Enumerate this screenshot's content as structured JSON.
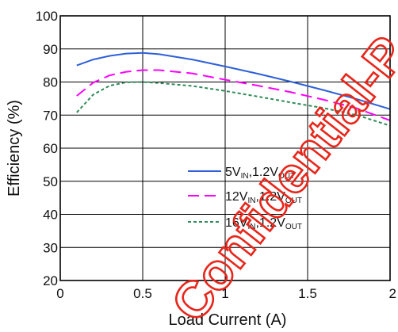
{
  "chart_data": {
    "type": "line",
    "xlabel": "Load Current (A)",
    "ylabel": "Efficiency (%)",
    "xlim": [
      0,
      2
    ],
    "ylim": [
      20,
      100
    ],
    "x_ticks": [
      {
        "value": 0,
        "label": "0"
      },
      {
        "value": 0.5,
        "label": "0.5"
      },
      {
        "value": 1,
        "label": "1"
      },
      {
        "value": 1.5,
        "label": "1.5"
      },
      {
        "value": 2,
        "label": "2"
      }
    ],
    "y_ticks": [
      {
        "value": 20,
        "label": "20"
      },
      {
        "value": 30,
        "label": "30"
      },
      {
        "value": 40,
        "label": "40"
      },
      {
        "value": 50,
        "label": "50"
      },
      {
        "value": 60,
        "label": "60"
      },
      {
        "value": 70,
        "label": "70"
      },
      {
        "value": 80,
        "label": "80"
      },
      {
        "value": 90,
        "label": "90"
      },
      {
        "value": 100,
        "label": "100"
      }
    ],
    "grid": true,
    "legend_position": "lower-right",
    "series": [
      {
        "name": "5VIN,1.2VOUT",
        "legend": {
          "a": "5V",
          "a_sub": "IN",
          "b": ",1.2V",
          "b_sub": "OUT"
        },
        "color": "#2e5fd8",
        "dash": "solid",
        "x": [
          0.1,
          0.2,
          0.3,
          0.4,
          0.5,
          0.6,
          0.8,
          1.0,
          1.2,
          1.4,
          1.6,
          1.8,
          2.0
        ],
        "y": [
          85.0,
          86.8,
          87.9,
          88.6,
          88.8,
          88.4,
          86.8,
          84.7,
          82.5,
          80.1,
          77.5,
          74.8,
          71.8
        ]
      },
      {
        "name": "12VIN,1.2VOUT",
        "legend": {
          "a": "12V",
          "a_sub": "IN",
          "b": ",1.2V",
          "b_sub": "OUT"
        },
        "color": "#ff00ff",
        "dash": "dashed",
        "x": [
          0.1,
          0.2,
          0.3,
          0.4,
          0.5,
          0.6,
          0.8,
          1.0,
          1.2,
          1.4,
          1.6,
          1.8,
          2.0
        ],
        "y": [
          75.8,
          79.8,
          82.0,
          83.1,
          83.6,
          83.6,
          82.6,
          80.7,
          78.9,
          76.9,
          74.6,
          72.0,
          68.4
        ]
      },
      {
        "name": "16VIN,1.2VOUT",
        "legend": {
          "a": "16V",
          "a_sub": "IN",
          "b": ",1.2V",
          "b_sub": "OUT"
        },
        "color": "#2e8b57",
        "dash": "dotted",
        "x": [
          0.1,
          0.2,
          0.3,
          0.4,
          0.5,
          0.6,
          0.8,
          1.0,
          1.2,
          1.4,
          1.6,
          1.8,
          2.0
        ],
        "y": [
          70.8,
          76.2,
          78.9,
          79.9,
          80.0,
          79.7,
          78.8,
          77.3,
          75.6,
          73.8,
          72.1,
          70.0,
          66.8
        ]
      }
    ]
  },
  "watermark": {
    "text": "Confidential-P",
    "color": "#e8261b"
  }
}
